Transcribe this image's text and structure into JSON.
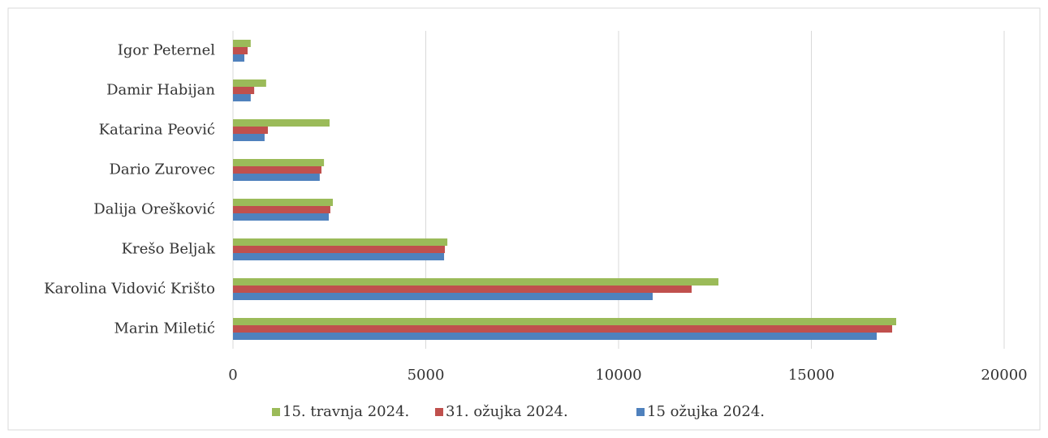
{
  "chart_data": {
    "type": "hbar",
    "categories": [
      "Igor Peternel",
      "Damir Habijan",
      "Katarina Peović",
      "Dario Zurovec",
      "Dalija Orešković",
      "Krešo Beljak",
      "Karolina Vidović Krišto",
      "Marin Miletić"
    ],
    "series": [
      {
        "name": "15. travnja 2024.",
        "color": "#9bbb59",
        "values": [
          460,
          860,
          2505,
          2360,
          2590,
          5560,
          12590,
          17200
        ]
      },
      {
        "name": "31. ožujka 2024.",
        "color": "#c0504d",
        "values": [
          380,
          550,
          905,
          2295,
          2525,
          5495,
          11895,
          17095
        ]
      },
      {
        "name": "15 ožujka 2024.",
        "color": "#4f81bd",
        "values": [
          295,
          460,
          820,
          2250,
          2485,
          5475,
          10885,
          16695
        ]
      }
    ],
    "xlim": [
      0,
      20000
    ],
    "xticks": [
      0,
      5000,
      10000,
      15000,
      20000
    ],
    "grid": true,
    "legend": "bottom"
  }
}
